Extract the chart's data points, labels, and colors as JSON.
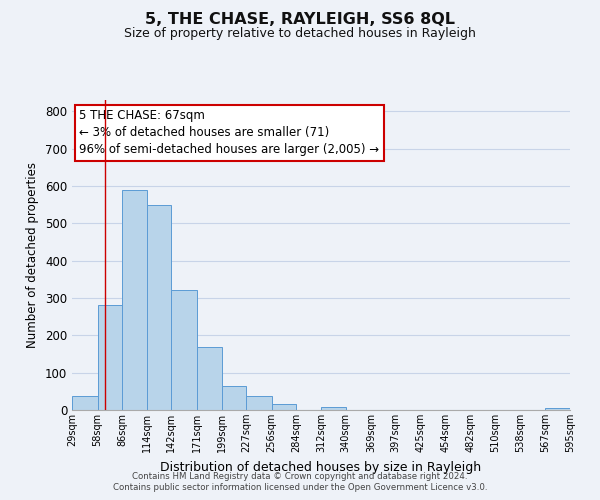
{
  "title": "5, THE CHASE, RAYLEIGH, SS6 8QL",
  "subtitle": "Size of property relative to detached houses in Rayleigh",
  "xlabel": "Distribution of detached houses by size in Rayleigh",
  "ylabel": "Number of detached properties",
  "bar_edges": [
    29,
    58,
    86,
    114,
    142,
    171,
    199,
    227,
    256,
    284,
    312,
    340,
    369,
    397,
    425,
    454,
    482,
    510,
    538,
    567,
    595
  ],
  "bar_heights": [
    38,
    280,
    590,
    550,
    320,
    170,
    65,
    38,
    15,
    0,
    8,
    0,
    0,
    0,
    0,
    0,
    0,
    0,
    0,
    5,
    0
  ],
  "bar_color": "#b8d4ea",
  "bar_edge_color": "#5b9bd5",
  "grid_color": "#c8d4e8",
  "background_color": "#eef2f8",
  "property_line_x": 67,
  "property_line_color": "#cc0000",
  "annotation_text": "5 THE CHASE: 67sqm\n← 3% of detached houses are smaller (71)\n96% of semi-detached houses are larger (2,005) →",
  "annotation_box_color": "#ffffff",
  "annotation_box_edge": "#cc0000",
  "ylim": [
    0,
    830
  ],
  "yticks": [
    0,
    100,
    200,
    300,
    400,
    500,
    600,
    700,
    800
  ],
  "footer_line1": "Contains HM Land Registry data © Crown copyright and database right 2024.",
  "footer_line2": "Contains public sector information licensed under the Open Government Licence v3.0."
}
